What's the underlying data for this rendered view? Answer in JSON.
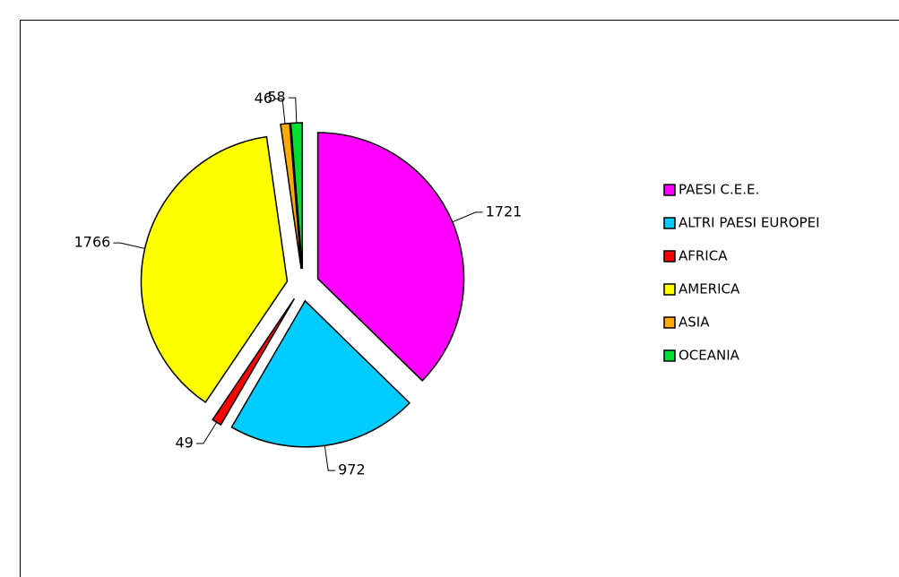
{
  "chart_data": {
    "type": "pie",
    "categories": [
      "PAESI  C.E.E.",
      "ALTRI PAESI EUROPEI",
      "AFRICA",
      "AMERICA",
      "ASIA",
      "OCEANIA"
    ],
    "values": [
      1721,
      972,
      49,
      1766,
      46,
      58
    ],
    "colors": [
      "#ff00ff",
      "#00ccff",
      "#ff0000",
      "#ffff00",
      "#ffaa00",
      "#00dd33"
    ],
    "legend": "right"
  }
}
